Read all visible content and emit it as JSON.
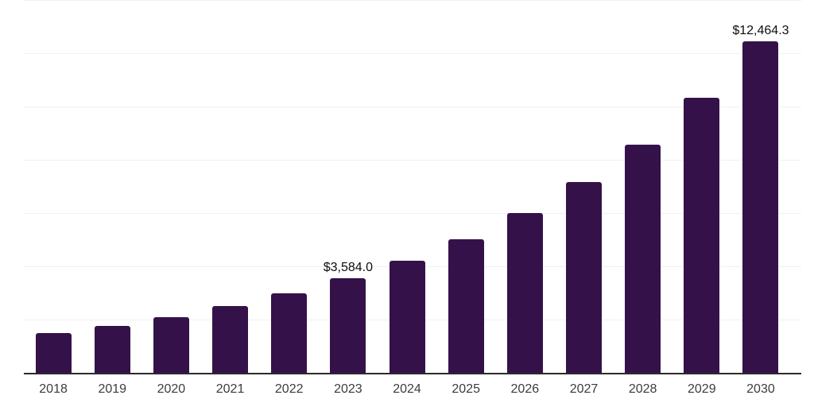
{
  "chart_data": {
    "type": "bar",
    "title": "",
    "xlabel": "",
    "ylabel": "",
    "categories": [
      "2018",
      "2019",
      "2020",
      "2021",
      "2022",
      "2023",
      "2024",
      "2025",
      "2026",
      "2027",
      "2028",
      "2029",
      "2030"
    ],
    "values": [
      1510,
      1790,
      2110,
      2540,
      3010,
      3584.0,
      4230,
      5040,
      6020,
      7180,
      8590,
      10370,
      12464.3
    ],
    "data_labels": [
      "",
      "",
      "",
      "",
      "",
      "$3,584.0",
      "",
      "",
      "",
      "",
      "",
      "",
      "$12,464.3"
    ],
    "ylim": [
      0,
      14000
    ],
    "gridline_interval": 2000,
    "grid": true,
    "y_axis_tick_labels_visible": false,
    "legend": "none",
    "colors": {
      "bar": "#341249",
      "gridline": "#f0f0f0",
      "axis_line": "#2b2b2b",
      "x_tick_label": "#3c3c3c",
      "data_label": "#0d0d0d",
      "background": "#ffffff"
    }
  }
}
